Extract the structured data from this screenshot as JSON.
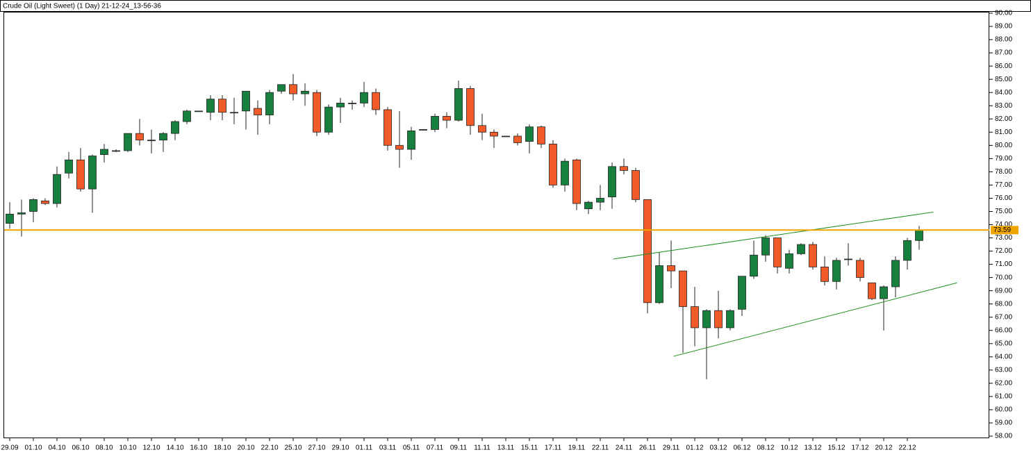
{
  "chart_data": {
    "type": "candlestick",
    "title": "Crude Oil (Light Sweet) (1 Day) 21-12-24_13-56-36",
    "categories": [
      "29.09",
      null,
      "01.10",
      null,
      "04.10",
      null,
      "06.10",
      null,
      "08.10",
      null,
      "10.10",
      null,
      "12.10",
      null,
      "14.10",
      null,
      "16.10",
      null,
      "18.10",
      null,
      "20.10",
      null,
      "22.10",
      null,
      "25.10",
      null,
      "27.10",
      null,
      "29.10",
      null,
      "01.11",
      null,
      "03.11",
      null,
      "05.11",
      null,
      "07.11",
      null,
      "09.11",
      null,
      "11.11",
      null,
      "13.11",
      null,
      "15.11",
      null,
      "17.11",
      null,
      "19.11",
      null,
      "22.11",
      null,
      "24.11",
      null,
      "26.11",
      null,
      "29.11",
      null,
      "01.12",
      null,
      "03.12",
      null,
      "06.12",
      null,
      "08.12",
      null,
      "10.12",
      null,
      "13.12",
      null,
      "15.12",
      null,
      "17.12",
      null,
      "20.12",
      null,
      "22.12",
      null
    ],
    "open": [
      74.1,
      74.8,
      75.0,
      75.8,
      75.6,
      77.9,
      78.9,
      76.7,
      79.3,
      79.6,
      79.6,
      80.9,
      80.4,
      80.4,
      80.9,
      81.8,
      82.6,
      82.5,
      83.5,
      82.5,
      82.6,
      82.8,
      82.3,
      84.1,
      84.6,
      83.9,
      84.0,
      81.0,
      82.9,
      83.2,
      83.2,
      84.0,
      82.7,
      80.0,
      79.7,
      81.2,
      81.2,
      82.2,
      81.9,
      84.3,
      81.5,
      81.0,
      80.7,
      80.7,
      80.3,
      81.4,
      80.1,
      77.0,
      78.9,
      75.2,
      75.7,
      76.1,
      78.4,
      78.1,
      75.9,
      68.1,
      70.9,
      70.5,
      67.8,
      66.2,
      67.5,
      66.2,
      67.6,
      70.1,
      71.7,
      73.0,
      70.7,
      71.8,
      72.5,
      70.8,
      69.7,
      71.4,
      71.3,
      69.6,
      68.4,
      69.3,
      71.3,
      72.8
    ],
    "high": [
      75.7,
      75.9,
      76.0,
      76.0,
      78.4,
      79.5,
      79.8,
      79.3,
      80.1,
      79.7,
      80.9,
      82.0,
      81.2,
      81.0,
      81.9,
      82.7,
      82.6,
      83.8,
      83.8,
      83.6,
      84.1,
      83.4,
      84.2,
      84.6,
      85.4,
      84.7,
      84.2,
      83.1,
      83.6,
      83.4,
      84.8,
      84.3,
      82.9,
      82.6,
      81.4,
      81.2,
      82.4,
      82.5,
      84.9,
      84.5,
      82.4,
      81.2,
      80.7,
      80.9,
      81.6,
      81.5,
      80.4,
      79.0,
      79.0,
      75.8,
      77.0,
      78.7,
      79.0,
      78.3,
      75.9,
      71.9,
      72.8,
      70.5,
      69.3,
      67.6,
      69.0,
      67.6,
      70.1,
      72.8,
      73.2,
      73.0,
      72.1,
      72.6,
      72.7,
      71.6,
      71.5,
      72.6,
      71.5,
      69.6,
      69.4,
      71.6,
      73.0,
      73.9
    ],
    "low": [
      73.7,
      73.1,
      74.2,
      75.5,
      75.3,
      77.5,
      76.5,
      74.9,
      78.7,
      79.5,
      79.5,
      80.0,
      79.4,
      79.5,
      80.4,
      81.6,
      82.6,
      81.9,
      81.9,
      81.6,
      81.2,
      80.8,
      81.6,
      83.9,
      83.4,
      83.0,
      80.7,
      80.8,
      81.7,
      82.7,
      82.9,
      82.3,
      79.6,
      78.3,
      78.9,
      81.2,
      81.0,
      81.3,
      81.8,
      80.8,
      80.4,
      79.8,
      80.7,
      80.0,
      79.4,
      79.8,
      76.8,
      76.5,
      75.1,
      74.8,
      75.1,
      75.2,
      77.8,
      75.7,
      67.3,
      68.0,
      69.2,
      64.3,
      64.8,
      62.3,
      65.4,
      66.0,
      67.1,
      69.9,
      71.2,
      70.3,
      70.3,
      71.7,
      70.6,
      69.4,
      69.1,
      70.9,
      69.7,
      68.3,
      66.0,
      68.5,
      70.6,
      72.1
    ],
    "close": [
      74.8,
      74.9,
      75.9,
      75.6,
      77.8,
      78.9,
      76.7,
      79.2,
      79.7,
      79.6,
      80.9,
      80.4,
      80.4,
      80.9,
      81.8,
      82.6,
      82.6,
      83.5,
      82.5,
      82.5,
      84.1,
      82.3,
      84.0,
      84.6,
      83.9,
      84.1,
      81.0,
      82.9,
      83.2,
      83.2,
      84.0,
      82.7,
      80.0,
      79.7,
      81.1,
      81.2,
      82.2,
      81.9,
      84.3,
      81.5,
      81.0,
      80.7,
      80.7,
      80.2,
      81.4,
      80.1,
      77.0,
      78.8,
      75.6,
      75.7,
      76.0,
      78.4,
      78.1,
      75.9,
      68.1,
      70.9,
      70.5,
      67.8,
      66.2,
      67.5,
      66.2,
      67.5,
      70.1,
      71.7,
      73.0,
      70.8,
      71.8,
      72.5,
      70.8,
      69.7,
      71.3,
      71.4,
      70.0,
      68.4,
      69.3,
      71.3,
      72.8,
      73.59
    ],
    "up_color": "#17803f",
    "down_color": "#f15a29",
    "hline": {
      "value": 73.59,
      "color": "#f0a400"
    },
    "trendlines": [
      {
        "x": [
          51.1,
          78.2
        ],
        "y": [
          71.4,
          74.95
        ],
        "color": "#1f8f1f"
      },
      {
        "x": [
          56.2,
          80.2
        ],
        "y": [
          64.04,
          69.6
        ],
        "color": "#1f8f1f"
      }
    ],
    "ylim": [
      58,
      90
    ],
    "yticks": [
      {
        "value": 58,
        "label": "58.00"
      },
      {
        "value": 59,
        "label": "59.00"
      },
      {
        "value": 60,
        "label": "60.00"
      },
      {
        "value": 61,
        "label": "61.00"
      },
      {
        "value": 62,
        "label": "62.00"
      },
      {
        "value": 63,
        "label": "63.00"
      },
      {
        "value": 64,
        "label": "64.00"
      },
      {
        "value": 65,
        "label": "65.00"
      },
      {
        "value": 66,
        "label": "66.00"
      },
      {
        "value": 67,
        "label": "67.00"
      },
      {
        "value": 68,
        "label": "68.00"
      },
      {
        "value": 69,
        "label": "69.00"
      },
      {
        "value": 70,
        "label": "70.00"
      },
      {
        "value": 71,
        "label": "71.00"
      },
      {
        "value": 72,
        "label": "72.00"
      },
      {
        "value": 73,
        "label": "73.00"
      },
      {
        "value": 74,
        "label": "74.00"
      },
      {
        "value": 75,
        "label": "75.00"
      },
      {
        "value": 76,
        "label": "76.00"
      },
      {
        "value": 77,
        "label": "77.00"
      },
      {
        "value": 78,
        "label": "78.00"
      },
      {
        "value": 79,
        "label": "79.00"
      },
      {
        "value": 80,
        "label": "80.00"
      },
      {
        "value": 81,
        "label": "81.00"
      },
      {
        "value": 82,
        "label": "82.00"
      },
      {
        "value": 83,
        "label": "83.00"
      },
      {
        "value": 84,
        "label": "84.00"
      },
      {
        "value": 85,
        "label": "85.00"
      },
      {
        "value": 86,
        "label": "86.00"
      },
      {
        "value": 87,
        "label": "87.00"
      },
      {
        "value": 88,
        "label": "88.00"
      },
      {
        "value": 89,
        "label": "89.00"
      },
      {
        "value": 90,
        "label": "90.00"
      }
    ]
  }
}
